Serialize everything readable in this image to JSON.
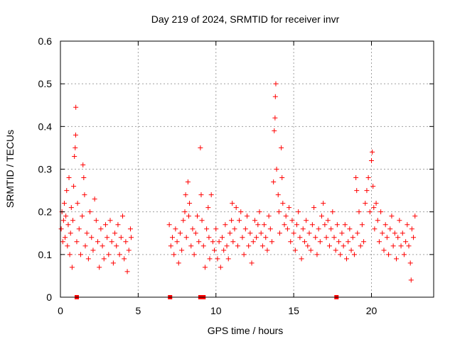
{
  "chart_data": {
    "type": "scatter",
    "title": "Day 219 of 2024, SRMTID for receiver invr",
    "xlabel": "GPS time / hours",
    "ylabel": "SRMTID / TECUs",
    "xlim": [
      0,
      24
    ],
    "ylim": [
      0,
      0.6
    ],
    "xticks": [
      0,
      5,
      10,
      15,
      20
    ],
    "xtick_labels": [
      "0",
      "5",
      "10",
      "15",
      "20"
    ],
    "yticks": [
      0,
      0.1,
      0.2,
      0.3,
      0.4,
      0.5,
      0.6
    ],
    "ytick_labels": [
      "0",
      "0.1",
      "0.2",
      "0.3",
      "0.4",
      "0.5",
      "0.6"
    ],
    "grid": true,
    "marker": "plus",
    "color": "#ff0000",
    "series": [
      {
        "name": "SRMTID",
        "points": [
          [
            0.05,
            0.16
          ],
          [
            0.1,
            0.2
          ],
          [
            0.15,
            0.13
          ],
          [
            0.2,
            0.18
          ],
          [
            0.25,
            0.22
          ],
          [
            0.3,
            0.14
          ],
          [
            0.35,
            0.19
          ],
          [
            0.4,
            0.25
          ],
          [
            0.45,
            0.12
          ],
          [
            0.5,
            0.17
          ],
          [
            0.55,
            0.28
          ],
          [
            0.6,
            0.1
          ],
          [
            0.65,
            0.15
          ],
          [
            0.7,
            0.21
          ],
          [
            0.75,
            0.07
          ],
          [
            0.8,
            0.18
          ],
          [
            0.85,
            0.26
          ],
          [
            0.9,
            0.33
          ],
          [
            0.95,
            0.35
          ],
          [
            0.98,
            0.38
          ],
          [
            0.99,
            0.445
          ],
          [
            1.05,
            0.13
          ],
          [
            1.1,
            0.22
          ],
          [
            1.2,
            0.16
          ],
          [
            1.3,
            0.1
          ],
          [
            1.4,
            0.19
          ],
          [
            1.45,
            0.31
          ],
          [
            1.5,
            0.28
          ],
          [
            1.55,
            0.24
          ],
          [
            1.6,
            0.12
          ],
          [
            1.7,
            0.15
          ],
          [
            1.8,
            0.09
          ],
          [
            1.9,
            0.2
          ],
          [
            2.0,
            0.14
          ],
          [
            2.1,
            0.11
          ],
          [
            2.2,
            0.23
          ],
          [
            2.3,
            0.18
          ],
          [
            2.4,
            0.13
          ],
          [
            2.5,
            0.07
          ],
          [
            2.6,
            0.16
          ],
          [
            2.7,
            0.12
          ],
          [
            2.8,
            0.09
          ],
          [
            2.9,
            0.17
          ],
          [
            3.0,
            0.14
          ],
          [
            3.1,
            0.1
          ],
          [
            3.2,
            0.18
          ],
          [
            3.3,
            0.13
          ],
          [
            3.4,
            0.08
          ],
          [
            3.5,
            0.15
          ],
          [
            3.6,
            0.12
          ],
          [
            3.7,
            0.17
          ],
          [
            3.8,
            0.1
          ],
          [
            3.9,
            0.14
          ],
          [
            4.0,
            0.19
          ],
          [
            4.1,
            0.09
          ],
          [
            4.2,
            0.13
          ],
          [
            4.3,
            0.06
          ],
          [
            4.4,
            0.11
          ],
          [
            4.5,
            0.16
          ],
          [
            4.55,
            0.14
          ],
          [
            7.0,
            0.17
          ],
          [
            7.1,
            0.12
          ],
          [
            7.2,
            0.14
          ],
          [
            7.3,
            0.1
          ],
          [
            7.4,
            0.16
          ],
          [
            7.5,
            0.13
          ],
          [
            7.6,
            0.08
          ],
          [
            7.7,
            0.15
          ],
          [
            7.8,
            0.11
          ],
          [
            7.9,
            0.18
          ],
          [
            8.0,
            0.2
          ],
          [
            8.05,
            0.24
          ],
          [
            8.1,
            0.14
          ],
          [
            8.2,
            0.27
          ],
          [
            8.25,
            0.19
          ],
          [
            8.3,
            0.22
          ],
          [
            8.4,
            0.12
          ],
          [
            8.5,
            0.16
          ],
          [
            8.6,
            0.1
          ],
          [
            8.7,
            0.15
          ],
          [
            8.8,
            0.19
          ],
          [
            8.9,
            0.13
          ],
          [
            9.0,
            0.35
          ],
          [
            9.05,
            0.24
          ],
          [
            9.1,
            0.18
          ],
          [
            9.2,
            0.12
          ],
          [
            9.3,
            0.07
          ],
          [
            9.4,
            0.16
          ],
          [
            9.5,
            0.21
          ],
          [
            9.55,
            0.14
          ],
          [
            9.6,
            0.09
          ],
          [
            9.7,
            0.24
          ],
          [
            9.8,
            0.13
          ],
          [
            9.9,
            0.11
          ],
          [
            10.0,
            0.16
          ],
          [
            10.1,
            0.09
          ],
          [
            10.2,
            0.13
          ],
          [
            10.3,
            0.07
          ],
          [
            10.4,
            0.14
          ],
          [
            10.5,
            0.11
          ],
          [
            10.6,
            0.17
          ],
          [
            10.7,
            0.12
          ],
          [
            10.8,
            0.09
          ],
          [
            10.9,
            0.15
          ],
          [
            11.0,
            0.18
          ],
          [
            11.05,
            0.22
          ],
          [
            11.1,
            0.13
          ],
          [
            11.2,
            0.16
          ],
          [
            11.3,
            0.21
          ],
          [
            11.4,
            0.12
          ],
          [
            11.5,
            0.18
          ],
          [
            11.6,
            0.2
          ],
          [
            11.7,
            0.14
          ],
          [
            11.8,
            0.1
          ],
          [
            11.9,
            0.16
          ],
          [
            12.0,
            0.19
          ],
          [
            12.1,
            0.12
          ],
          [
            12.2,
            0.15
          ],
          [
            12.3,
            0.08
          ],
          [
            12.4,
            0.13
          ],
          [
            12.5,
            0.18
          ],
          [
            12.6,
            0.14
          ],
          [
            12.7,
            0.17
          ],
          [
            12.8,
            0.2
          ],
          [
            12.9,
            0.15
          ],
          [
            13.0,
            0.12
          ],
          [
            13.1,
            0.17
          ],
          [
            13.2,
            0.14
          ],
          [
            13.3,
            0.11
          ],
          [
            13.4,
            0.19
          ],
          [
            13.5,
            0.16
          ],
          [
            13.6,
            0.13
          ],
          [
            13.7,
            0.27
          ],
          [
            13.75,
            0.39
          ],
          [
            13.8,
            0.42
          ],
          [
            13.82,
            0.47
          ],
          [
            13.85,
            0.5
          ],
          [
            13.9,
            0.3
          ],
          [
            14.0,
            0.24
          ],
          [
            14.05,
            0.2
          ],
          [
            14.1,
            0.15
          ],
          [
            14.2,
            0.35
          ],
          [
            14.25,
            0.28
          ],
          [
            14.3,
            0.22
          ],
          [
            14.4,
            0.17
          ],
          [
            14.5,
            0.19
          ],
          [
            14.6,
            0.16
          ],
          [
            14.7,
            0.21
          ],
          [
            14.8,
            0.13
          ],
          [
            14.9,
            0.18
          ],
          [
            15.0,
            0.15
          ],
          [
            15.1,
            0.11
          ],
          [
            15.2,
            0.17
          ],
          [
            15.3,
            0.2
          ],
          [
            15.4,
            0.14
          ],
          [
            15.5,
            0.09
          ],
          [
            15.6,
            0.16
          ],
          [
            15.7,
            0.13
          ],
          [
            15.8,
            0.18
          ],
          [
            15.9,
            0.12
          ],
          [
            16.0,
            0.15
          ],
          [
            16.1,
            0.11
          ],
          [
            16.2,
            0.17
          ],
          [
            16.3,
            0.21
          ],
          [
            16.4,
            0.14
          ],
          [
            16.5,
            0.1
          ],
          [
            16.6,
            0.16
          ],
          [
            16.7,
            0.13
          ],
          [
            16.8,
            0.19
          ],
          [
            16.9,
            0.22
          ],
          [
            17.0,
            0.17
          ],
          [
            17.1,
            0.14
          ],
          [
            17.2,
            0.18
          ],
          [
            17.3,
            0.12
          ],
          [
            17.4,
            0.16
          ],
          [
            17.5,
            0.2
          ],
          [
            17.6,
            0.14
          ],
          [
            17.7,
            0.11
          ],
          [
            17.8,
            0.17
          ],
          [
            17.9,
            0.13
          ],
          [
            18.0,
            0.1
          ],
          [
            18.1,
            0.15
          ],
          [
            18.2,
            0.12
          ],
          [
            18.3,
            0.17
          ],
          [
            18.4,
            0.09
          ],
          [
            18.5,
            0.13
          ],
          [
            18.6,
            0.16
          ],
          [
            18.7,
            0.11
          ],
          [
            18.8,
            0.14
          ],
          [
            18.9,
            0.1
          ],
          [
            19.0,
            0.28
          ],
          [
            19.05,
            0.25
          ],
          [
            19.1,
            0.15
          ],
          [
            19.2,
            0.2
          ],
          [
            19.3,
            0.12
          ],
          [
            19.4,
            0.17
          ],
          [
            19.5,
            0.13
          ],
          [
            19.6,
            0.22
          ],
          [
            19.7,
            0.25
          ],
          [
            19.8,
            0.28
          ],
          [
            19.9,
            0.2
          ],
          [
            20.0,
            0.32
          ],
          [
            20.05,
            0.34
          ],
          [
            20.1,
            0.26
          ],
          [
            20.15,
            0.21
          ],
          [
            20.2,
            0.16
          ],
          [
            20.3,
            0.22
          ],
          [
            20.4,
            0.18
          ],
          [
            20.5,
            0.13
          ],
          [
            20.6,
            0.2
          ],
          [
            20.7,
            0.15
          ],
          [
            20.8,
            0.11
          ],
          [
            20.9,
            0.17
          ],
          [
            21.0,
            0.14
          ],
          [
            21.1,
            0.1
          ],
          [
            21.2,
            0.16
          ],
          [
            21.3,
            0.19
          ],
          [
            21.4,
            0.12
          ],
          [
            21.5,
            0.15
          ],
          [
            21.6,
            0.09
          ],
          [
            21.7,
            0.14
          ],
          [
            21.8,
            0.18
          ],
          [
            21.9,
            0.12
          ],
          [
            22.0,
            0.15
          ],
          [
            22.1,
            0.1
          ],
          [
            22.2,
            0.13
          ],
          [
            22.3,
            0.17
          ],
          [
            22.4,
            0.12
          ],
          [
            22.5,
            0.08
          ],
          [
            22.55,
            0.04
          ],
          [
            22.6,
            0.16
          ],
          [
            22.7,
            0.14
          ],
          [
            22.8,
            0.19
          ]
        ]
      }
    ],
    "zero_markers_x": [
      1.05,
      7.05,
      9.0,
      9.1,
      9.2,
      17.75
    ]
  }
}
